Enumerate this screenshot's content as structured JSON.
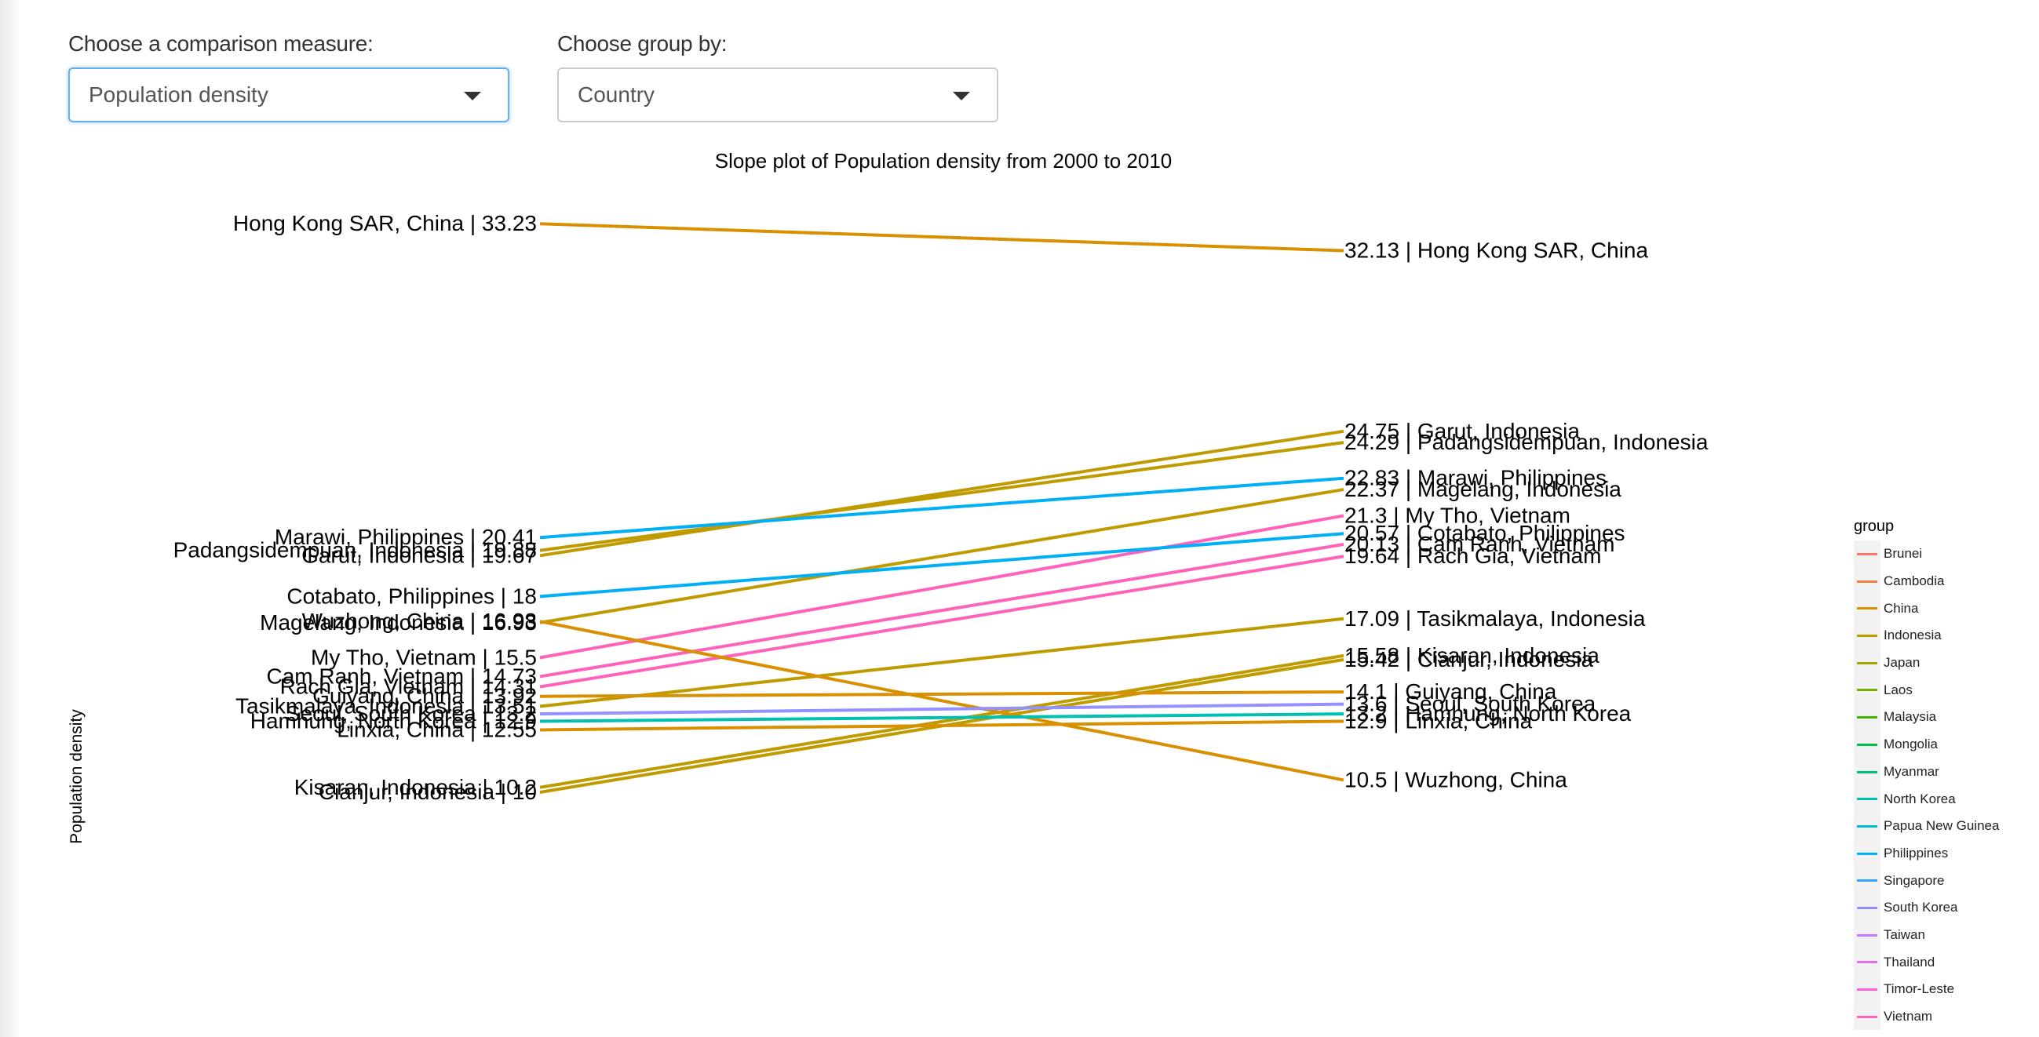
{
  "controls": {
    "measure_label": "Choose a comparison measure:",
    "measure_value": "Population density",
    "group_label": "Choose group by:",
    "group_value": "Country"
  },
  "chart_data": {
    "type": "line",
    "title": "Slope plot of  Population density  from 2000 to 2010",
    "ylabel": "Population density",
    "x": [
      2000,
      2010
    ],
    "ylim": [
      0,
      35
    ],
    "grid": false,
    "legend_title": "group",
    "legend_placement": "right",
    "groups": [
      {
        "name": "Brunei",
        "color": "#F8766D"
      },
      {
        "name": "Cambodia",
        "color": "#EE8044"
      },
      {
        "name": "China",
        "color": "#D89000"
      },
      {
        "name": "Indonesia",
        "color": "#C09B00"
      },
      {
        "name": "Japan",
        "color": "#A3A500"
      },
      {
        "name": "Laos",
        "color": "#7CAE00"
      },
      {
        "name": "Malaysia",
        "color": "#39B600"
      },
      {
        "name": "Mongolia",
        "color": "#00BB4E"
      },
      {
        "name": "Myanmar",
        "color": "#00BF7D"
      },
      {
        "name": "North Korea",
        "color": "#00C0AF"
      },
      {
        "name": "Papua New Guinea",
        "color": "#00BCD8"
      },
      {
        "name": "Philippines",
        "color": "#00B0F6"
      },
      {
        "name": "Singapore",
        "color": "#35A2FF"
      },
      {
        "name": "South Korea",
        "color": "#9590FF"
      },
      {
        "name": "Taiwan",
        "color": "#C77CFF"
      },
      {
        "name": "Thailand",
        "color": "#E76BF3"
      },
      {
        "name": "Timor-Leste",
        "color": "#FA62DB"
      },
      {
        "name": "Vietnam",
        "color": "#FF62BC"
      }
    ],
    "series": [
      {
        "name": "Hong Kong SAR, China",
        "group": "China",
        "values": [
          33.23,
          32.13
        ]
      },
      {
        "name": "Garut, Indonesia",
        "group": "Indonesia",
        "values": [
          19.67,
          24.75
        ]
      },
      {
        "name": "Padangsidempuan, Indonesia",
        "group": "Indonesia",
        "values": [
          19.88,
          24.29
        ]
      },
      {
        "name": "Marawi, Philippines",
        "group": "Philippines",
        "values": [
          20.41,
          22.83
        ]
      },
      {
        "name": "Magelang, Indonesia",
        "group": "Indonesia",
        "values": [
          16.93,
          22.37
        ]
      },
      {
        "name": "My Tho, Vietnam",
        "group": "Vietnam",
        "values": [
          15.5,
          21.3
        ]
      },
      {
        "name": "Cotabato, Philippines",
        "group": "Philippines",
        "values": [
          18,
          20.57
        ]
      },
      {
        "name": "Cam Ranh, Vietnam",
        "group": "Vietnam",
        "values": [
          14.73,
          20.13
        ]
      },
      {
        "name": "Rach Gia, Vietnam",
        "group": "Vietnam",
        "values": [
          14.31,
          19.64
        ]
      },
      {
        "name": "Tasikmalaya, Indonesia",
        "group": "Indonesia",
        "values": [
          13.51,
          17.09
        ]
      },
      {
        "name": "Kisaran, Indonesia",
        "group": "Indonesia",
        "values": [
          10.2,
          15.58
        ]
      },
      {
        "name": "Cianjur, Indonesia",
        "group": "Indonesia",
        "values": [
          10.0,
          15.42
        ]
      },
      {
        "name": "Wuzhong, China",
        "group": "China",
        "values": [
          16.98,
          10.5
        ]
      },
      {
        "name": "Guiyang, China",
        "group": "China",
        "values": [
          13.92,
          14.1
        ]
      },
      {
        "name": "Seoul, South Korea",
        "group": "South Korea",
        "values": [
          13.2,
          13.6
        ]
      },
      {
        "name": "Hamhung, North Korea",
        "group": "North Korea",
        "values": [
          12.9,
          13.2
        ]
      },
      {
        "name": "Linxia, China",
        "group": "China",
        "values": [
          12.55,
          12.9
        ]
      }
    ]
  }
}
